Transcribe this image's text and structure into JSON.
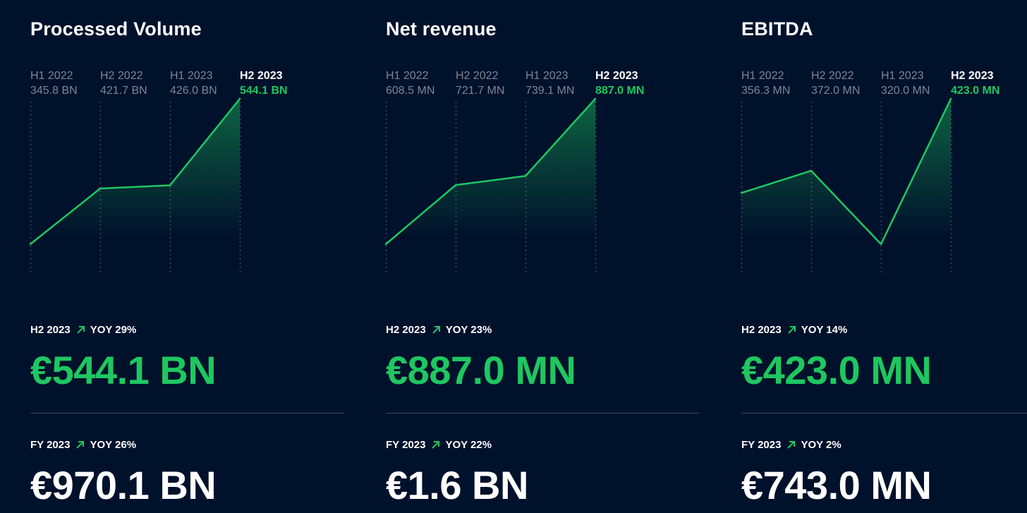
{
  "colors": {
    "background": "#00112b",
    "accent_green": "#1ec760",
    "muted_text": "#7d8696",
    "gridline": "#3a4a66",
    "divider": "#3a4660"
  },
  "panels": [
    {
      "title": "Processed Volume",
      "h2": {
        "period": "H2 2023",
        "yoy": "YOY 29%",
        "value": "€544.1 BN"
      },
      "fy": {
        "period": "FY 2023",
        "yoy": "YOY 26%",
        "value": "€970.1 BN"
      }
    },
    {
      "title": "Net revenue",
      "h2": {
        "period": "H2 2023",
        "yoy": "YOY 23%",
        "value": "€887.0 MN"
      },
      "fy": {
        "period": "FY 2023",
        "yoy": "YOY 22%",
        "value": "€1.6 BN"
      }
    },
    {
      "title": "EBITDA",
      "h2": {
        "period": "H2 2023",
        "yoy": "YOY 14%",
        "value": "€423.0 MN"
      },
      "fy": {
        "period": "FY 2023",
        "yoy": "YOY 2%",
        "value": "€743.0 MN"
      }
    }
  ],
  "chart_data": [
    {
      "type": "area",
      "title": "Processed Volume",
      "categories": [
        "H1 2022",
        "H2 2022",
        "H1 2023",
        "H2 2023"
      ],
      "values": [
        345.8,
        421.7,
        426.0,
        544.1
      ],
      "value_labels": [
        "345.8 BN",
        "421.7 BN",
        "426.0 BN",
        "544.1 BN"
      ],
      "unit": "BN",
      "grid": "vertical-dotted",
      "highlight_last": true
    },
    {
      "type": "area",
      "title": "Net revenue",
      "categories": [
        "H1 2022",
        "H2 2022",
        "H1 2023",
        "H2 2023"
      ],
      "values": [
        608.5,
        721.7,
        739.1,
        887.0
      ],
      "value_labels": [
        "608.5 MN",
        "721.7 MN",
        "739.1 MN",
        "887.0 MN"
      ],
      "unit": "MN",
      "grid": "vertical-dotted",
      "highlight_last": true
    },
    {
      "type": "area",
      "title": "EBITDA",
      "categories": [
        "H1 2022",
        "H2 2022",
        "H1 2023",
        "H2 2023"
      ],
      "values": [
        356.3,
        372.0,
        320.0,
        423.0
      ],
      "value_labels": [
        "356.3 MN",
        "372.0 MN",
        "320.0 MN",
        "423.0 MN"
      ],
      "unit": "MN",
      "grid": "vertical-dotted",
      "highlight_last": true
    }
  ]
}
